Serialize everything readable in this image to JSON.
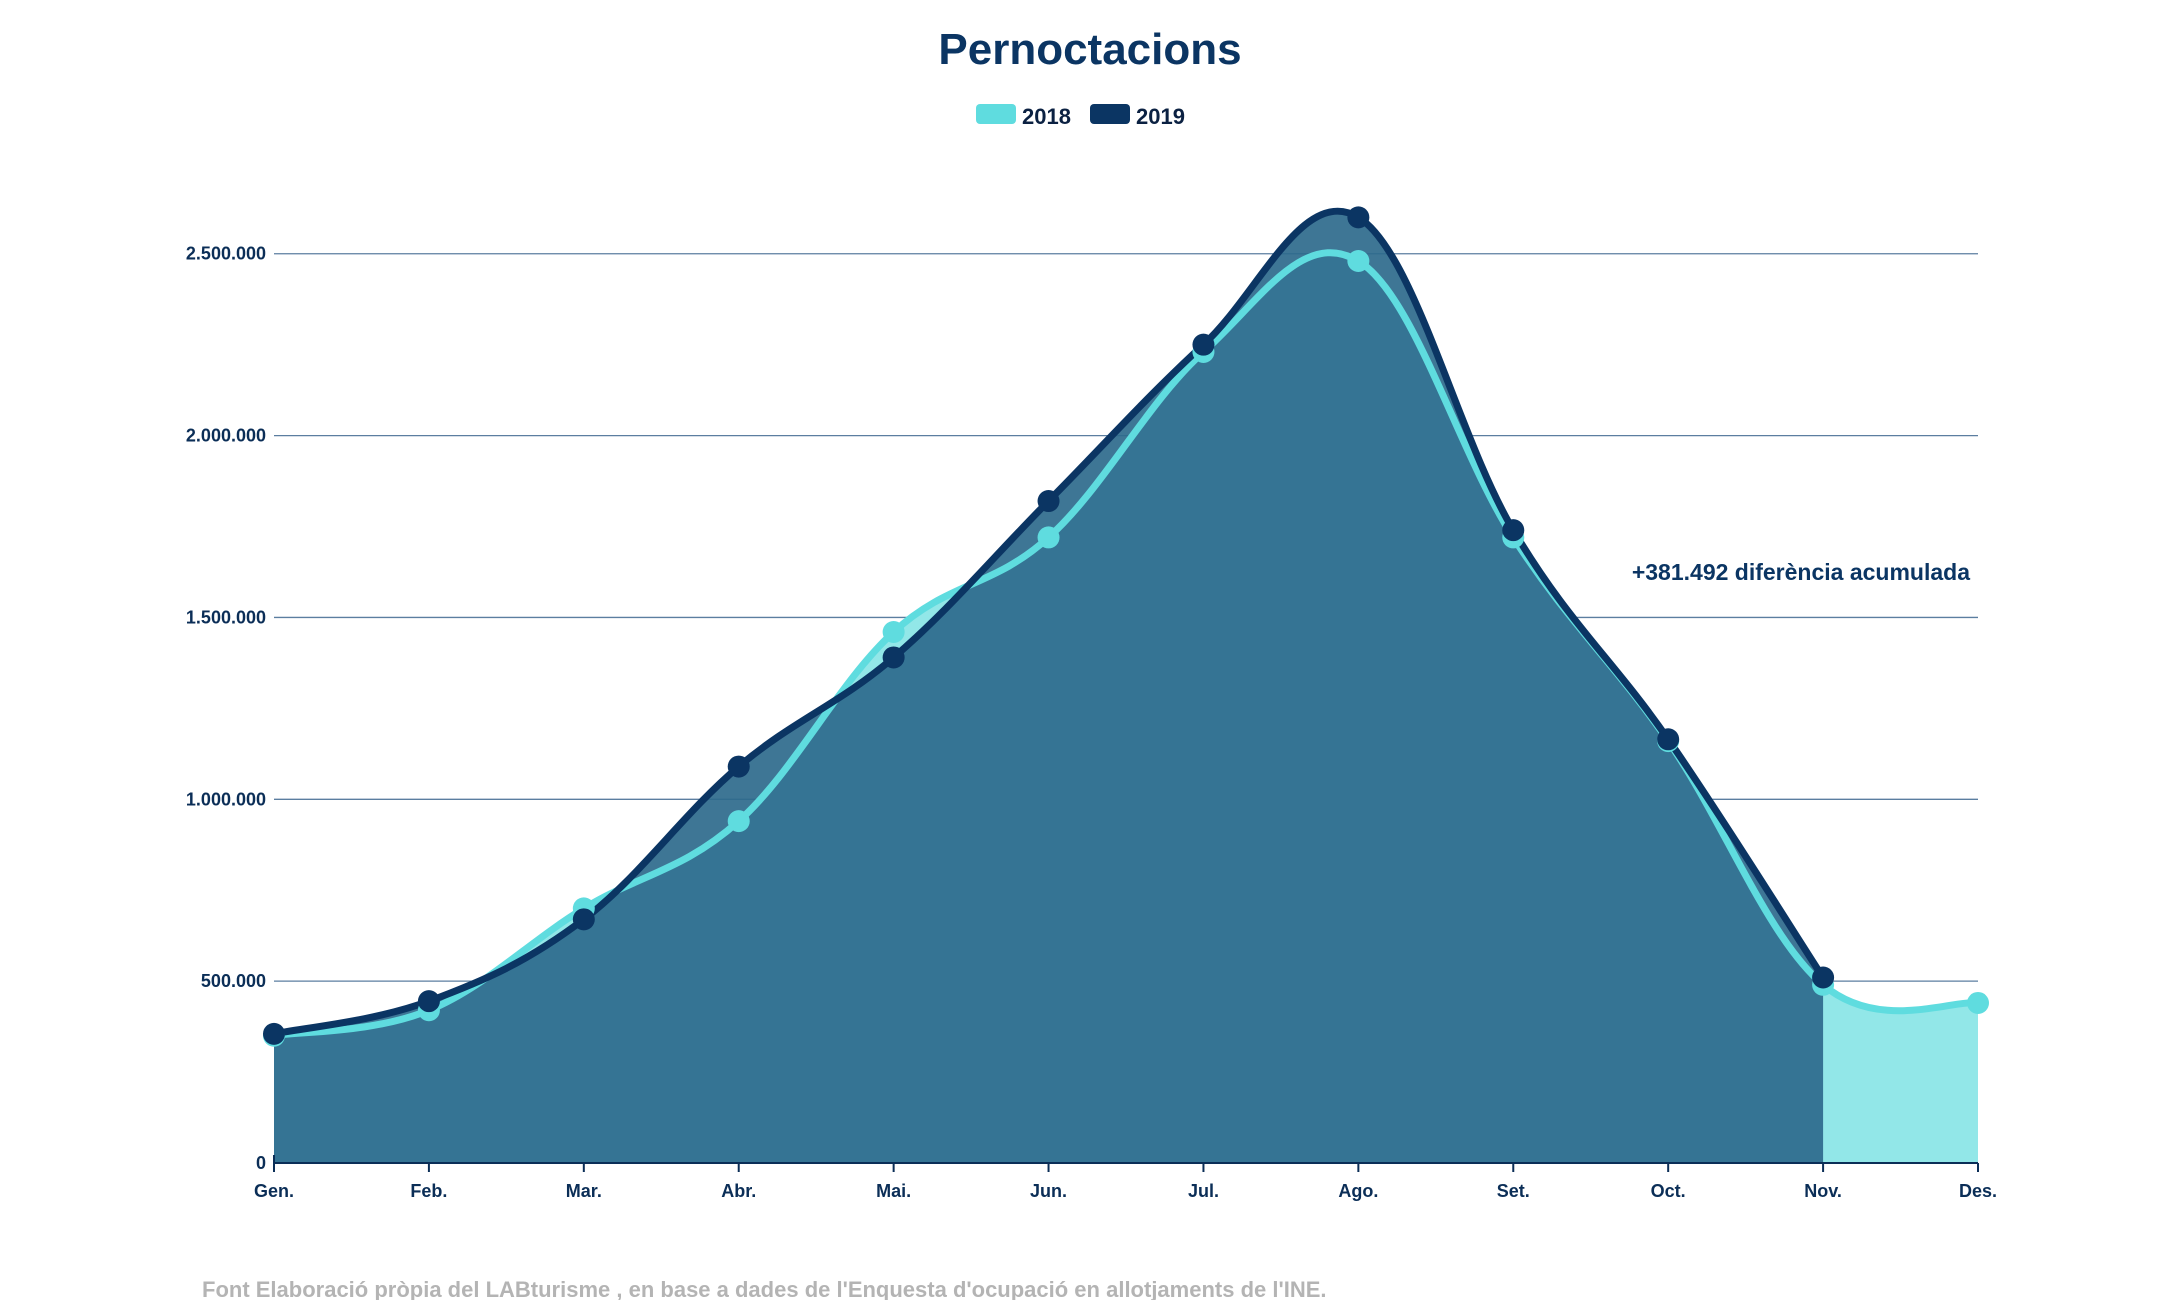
{
  "chart_data": {
    "type": "area",
    "title": "Pernoctacions",
    "categories": [
      "Gen.",
      "Feb.",
      "Mar.",
      "Abr.",
      "Mai.",
      "Jun.",
      "Jul.",
      "Ago.",
      "Set.",
      "Oct.",
      "Nov.",
      "Des."
    ],
    "series": [
      {
        "name": "2018",
        "color": "#5fdcdf",
        "area_color": "#92e7e8",
        "values": [
          350000,
          420000,
          700000,
          940000,
          1460000,
          1720000,
          2230000,
          2480000,
          1720000,
          1160000,
          490000,
          440000
        ]
      },
      {
        "name": "2019",
        "color": "#0b3563",
        "area_color": "#2e6a8c",
        "values": [
          355000,
          445000,
          670000,
          1090000,
          1390000,
          1820000,
          2250000,
          2600000,
          1740000,
          1165000,
          510000,
          null
        ]
      }
    ],
    "y_ticks": [
      0,
      500000,
      1000000,
      1500000,
      2000000,
      2500000
    ],
    "y_tick_labels": [
      "0",
      "500.000",
      "1.000.000",
      "1.500.000",
      "2.000.000",
      "2.500.000"
    ],
    "ylim": [
      0,
      2700000
    ],
    "grid": true,
    "legend_position": "top-center",
    "annotation": "+381.492 diferència acumulada",
    "source": "Font Elaboració pròpia del LABturisme , en base a dades de l'Enquesta d'ocupació en allotjaments de l'INE."
  }
}
